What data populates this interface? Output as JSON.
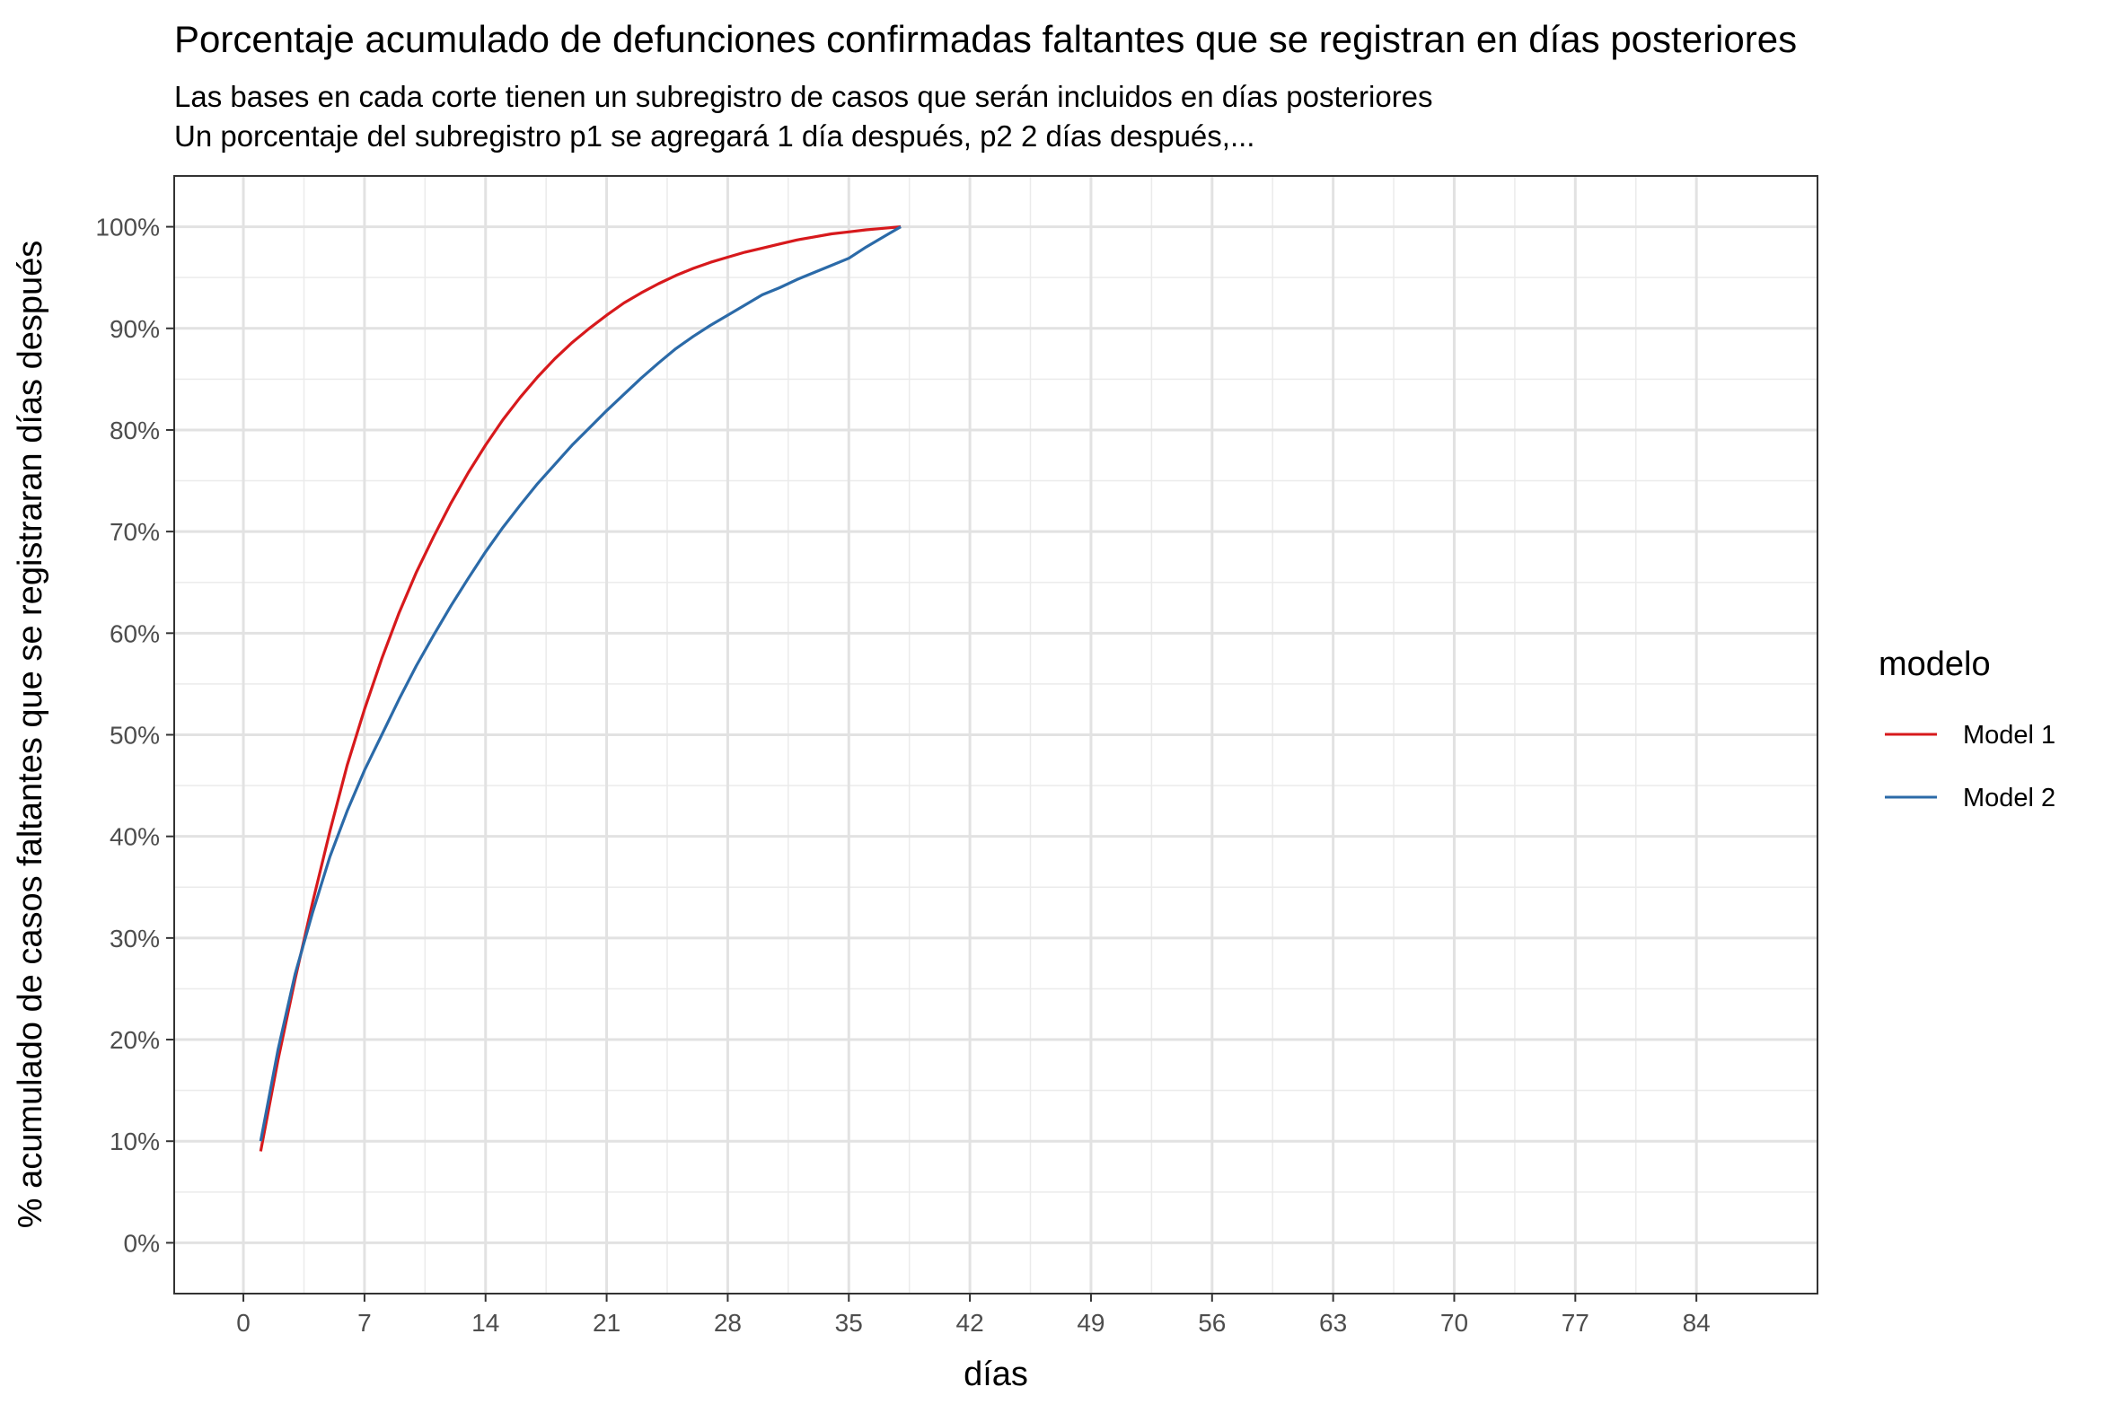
{
  "chart_data": {
    "type": "line",
    "title": "Porcentaje acumulado de defunciones confirmadas faltantes que se registran en días posteriores",
    "subtitle_lines": [
      "Las bases en cada corte tienen un subregistro de casos que serán incluidos en días posteriores",
      "Un porcentaje del subregistro p1 se agregará 1 día después, p2 2 días después,..."
    ],
    "xlabel": "días",
    "ylabel": "% acumulado de casos faltantes que se registraran días después",
    "xlim": [
      -4,
      91
    ],
    "ylim": [
      -5,
      105
    ],
    "x_ticks": [
      0,
      7,
      14,
      21,
      28,
      35,
      42,
      49,
      56,
      63,
      70,
      77,
      84
    ],
    "x_tick_labels": [
      "0",
      "7",
      "14",
      "21",
      "28",
      "35",
      "42",
      "49",
      "56",
      "63",
      "70",
      "77",
      "84"
    ],
    "y_ticks": [
      0,
      10,
      20,
      30,
      40,
      50,
      60,
      70,
      80,
      90,
      100
    ],
    "y_tick_labels": [
      "0%",
      "10%",
      "20%",
      "30%",
      "40%",
      "50%",
      "60%",
      "70%",
      "80%",
      "90%",
      "100%"
    ],
    "grid": true,
    "legend_title": "modelo",
    "legend_position": "right",
    "series": [
      {
        "name": "Model 1",
        "color": "#d7191c",
        "x": [
          1,
          2,
          3,
          4,
          5,
          6,
          7,
          8,
          9,
          10,
          11,
          12,
          13,
          14,
          15,
          16,
          17,
          18,
          19,
          20,
          21,
          22,
          23,
          24,
          25,
          26,
          27,
          28,
          29,
          30,
          31,
          32,
          33,
          34,
          35,
          36,
          37,
          38
        ],
        "y": [
          9,
          18,
          26,
          33.5,
          40.5,
          47,
          52.5,
          57.5,
          62,
          66,
          69.5,
          72.8,
          75.8,
          78.5,
          81,
          83.2,
          85.2,
          87,
          88.6,
          90,
          91.3,
          92.5,
          93.5,
          94.4,
          95.2,
          95.9,
          96.5,
          97,
          97.5,
          97.9,
          98.3,
          98.7,
          99,
          99.3,
          99.5,
          99.7,
          99.85,
          100
        ]
      },
      {
        "name": "Model 2",
        "color": "#2b6aa8",
        "x": [
          1,
          2,
          3,
          4,
          5,
          6,
          7,
          8,
          9,
          10,
          11,
          12,
          13,
          14,
          15,
          16,
          17,
          18,
          19,
          20,
          21,
          22,
          23,
          24,
          25,
          26,
          27,
          28,
          29,
          30,
          31,
          32,
          33,
          34,
          35,
          36,
          37,
          38
        ],
        "y": [
          10,
          19,
          26.5,
          32.5,
          38,
          42.5,
          46.5,
          50,
          53.5,
          56.8,
          59.8,
          62.7,
          65.4,
          68,
          70.4,
          72.6,
          74.7,
          76.6,
          78.5,
          80.2,
          81.9,
          83.5,
          85.1,
          86.6,
          88,
          89.2,
          90.3,
          91.3,
          92.3,
          93.3,
          94,
          94.8,
          95.5,
          96.2,
          96.9,
          98,
          99,
          100
        ]
      }
    ]
  }
}
